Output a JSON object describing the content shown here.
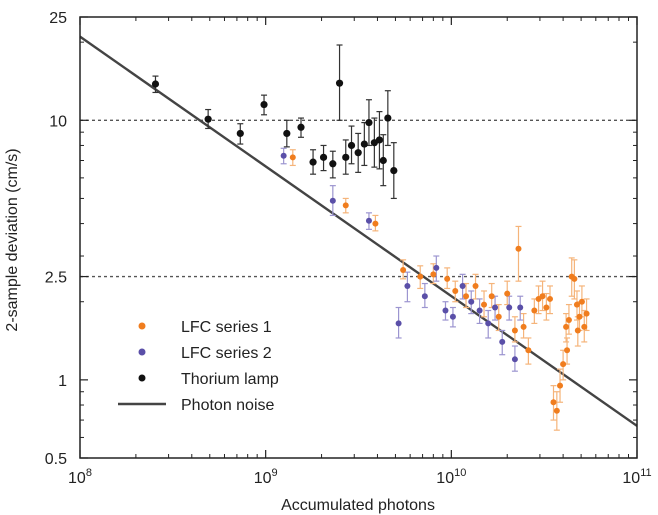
{
  "chart_data": {
    "type": "scatter",
    "xlabel": "Accumulated photons",
    "ylabel": "2-sample deviation (cm/s)",
    "x_scale": "log",
    "y_scale": "log",
    "xlim": [
      100000000.0,
      100000000000.0
    ],
    "ylim": [
      0.5,
      25
    ],
    "x_ticks": [
      {
        "value": 100000000.0,
        "base": "10",
        "exp": "8"
      },
      {
        "value": 1000000000.0,
        "base": "10",
        "exp": "9"
      },
      {
        "value": 10000000000.0,
        "base": "10",
        "exp": "10"
      },
      {
        "value": 100000000000.0,
        "base": "10",
        "exp": "11"
      }
    ],
    "y_ticks": [
      {
        "value": 0.5,
        "label": "0.5"
      },
      {
        "value": 1,
        "label": "1"
      },
      {
        "value": 2.5,
        "label": "2.5"
      },
      {
        "value": 10,
        "label": "10"
      },
      {
        "value": 25,
        "label": "25"
      }
    ],
    "reference_lines": [
      10,
      2.5
    ],
    "colors": {
      "lfc1": "#f07d1e",
      "lfc2": "#5a4fa8",
      "thorium": "#111111",
      "photon_noise": "#444444",
      "reference_line": "#555555"
    },
    "series": [
      {
        "name": "LFC series 1",
        "color_key": "lfc1",
        "points": [
          [
            1400000000.0,
            7.2,
            6.7,
            7.7
          ],
          [
            2700000000.0,
            4.7,
            4.4,
            5.0
          ],
          [
            3900000000.0,
            4.0,
            3.75,
            4.3
          ],
          [
            5500000000.0,
            2.65,
            2.45,
            2.9
          ],
          [
            6800000000.0,
            2.5,
            2.25,
            2.75
          ],
          [
            8000000000.0,
            2.55,
            2.35,
            2.8
          ],
          [
            9500000000.0,
            2.45,
            2.25,
            2.7
          ],
          [
            10500000000.0,
            2.2,
            2.0,
            2.4
          ],
          [
            12000000000.0,
            2.1,
            1.9,
            2.35
          ],
          [
            13500000000.0,
            2.3,
            2.05,
            2.55
          ],
          [
            15000000000.0,
            1.95,
            1.75,
            2.2
          ],
          [
            16500000000.0,
            2.1,
            1.9,
            2.35
          ],
          [
            18000000000.0,
            1.75,
            1.55,
            1.95
          ],
          [
            20000000000.0,
            2.15,
            1.95,
            2.4
          ],
          [
            22000000000.0,
            1.55,
            1.4,
            1.75
          ],
          [
            23000000000.0,
            3.2,
            2.4,
            3.9
          ],
          [
            24500000000.0,
            1.6,
            1.45,
            1.8
          ],
          [
            26000000000.0,
            1.3,
            1.15,
            1.45
          ],
          [
            28000000000.0,
            1.85,
            1.65,
            2.05
          ],
          [
            29500000000.0,
            2.05,
            1.8,
            2.3
          ],
          [
            31000000000.0,
            2.1,
            1.85,
            2.4
          ],
          [
            32500000000.0,
            1.9,
            1.7,
            2.15
          ],
          [
            34000000000.0,
            2.05,
            1.8,
            2.3
          ],
          [
            35500000000.0,
            0.82,
            0.7,
            0.95
          ],
          [
            37000000000.0,
            0.76,
            0.64,
            0.9
          ],
          [
            38500000000.0,
            0.95,
            0.82,
            1.1
          ],
          [
            40000000000.0,
            1.15,
            1.0,
            1.3
          ],
          [
            41500000000.0,
            1.6,
            1.4,
            1.8
          ],
          [
            43000000000.0,
            1.7,
            1.5,
            1.95
          ],
          [
            44500000000.0,
            2.5,
            2.1,
            2.95
          ],
          [
            46000000000.0,
            2.45,
            2.05,
            2.9
          ],
          [
            47500000000.0,
            1.95,
            1.7,
            2.2
          ],
          [
            49000000000.0,
            1.75,
            1.55,
            2.0
          ],
          [
            50500000000.0,
            2.0,
            1.75,
            2.3
          ],
          [
            52000000000.0,
            1.6,
            1.4,
            1.85
          ],
          [
            53500000000.0,
            1.8,
            1.55,
            2.05
          ],
          [
            42000000000.0,
            1.3,
            1.15,
            1.45
          ],
          [
            48000000000.0,
            1.55,
            1.35,
            1.75
          ]
        ]
      },
      {
        "name": "LFC series 2",
        "color_key": "lfc2",
        "points": [
          [
            1250000000.0,
            7.3,
            6.8,
            7.8
          ],
          [
            2300000000.0,
            4.9,
            4.3,
            5.6
          ],
          [
            3600000000.0,
            4.1,
            3.8,
            4.4
          ],
          [
            5200000000.0,
            1.65,
            1.45,
            1.9
          ],
          [
            5800000000.0,
            2.3,
            2.0,
            2.6
          ],
          [
            7200000000.0,
            2.1,
            1.9,
            2.35
          ],
          [
            8300000000.0,
            2.7,
            2.4,
            3.0
          ],
          [
            9300000000.0,
            1.85,
            1.7,
            2.0
          ],
          [
            10200000000.0,
            1.75,
            1.6,
            1.9
          ],
          [
            11500000000.0,
            2.3,
            2.05,
            2.55
          ],
          [
            12800000000.0,
            2.0,
            1.8,
            2.2
          ],
          [
            14200000000.0,
            1.85,
            1.65,
            2.05
          ],
          [
            15800000000.0,
            1.65,
            1.45,
            1.85
          ],
          [
            17200000000.0,
            1.9,
            1.7,
            2.1
          ],
          [
            18800000000.0,
            1.4,
            1.25,
            1.55
          ],
          [
            20500000000.0,
            1.9,
            1.7,
            2.1
          ],
          [
            22000000000.0,
            1.2,
            1.08,
            1.35
          ],
          [
            23500000000.0,
            1.9,
            1.7,
            2.1
          ]
        ]
      },
      {
        "name": "Thorium lamp",
        "color_key": "thorium",
        "points": [
          [
            255000000.0,
            13.8,
            12.8,
            14.8
          ],
          [
            490000000.0,
            10.1,
            9.3,
            11.0
          ],
          [
            730000000.0,
            8.9,
            8.1,
            9.7
          ],
          [
            980000000.0,
            11.5,
            10.5,
            12.5
          ],
          [
            1300000000.0,
            8.9,
            7.9,
            10.0
          ],
          [
            1550000000.0,
            9.4,
            8.6,
            10.2
          ],
          [
            1800000000.0,
            6.9,
            6.2,
            7.7
          ],
          [
            2050000000.0,
            7.2,
            6.4,
            8.0
          ],
          [
            2300000000.0,
            6.8,
            6.0,
            7.6
          ],
          [
            2500000000.0,
            13.9,
            10.0,
            19.5
          ],
          [
            2700000000.0,
            7.2,
            6.2,
            8.4
          ],
          [
            2900000000.0,
            8.0,
            6.8,
            9.5
          ],
          [
            3150000000.0,
            7.5,
            6.3,
            8.9
          ],
          [
            3400000000.0,
            8.1,
            6.7,
            9.8
          ],
          [
            3600000000.0,
            9.8,
            8.0,
            12.0
          ],
          [
            3850000000.0,
            8.2,
            6.6,
            10.2
          ],
          [
            4100000000.0,
            8.4,
            6.5,
            10.8
          ],
          [
            4300000000.0,
            7.0,
            5.6,
            8.8
          ],
          [
            4550000000.0,
            10.2,
            8.0,
            13.0
          ],
          [
            4900000000.0,
            6.4,
            5.0,
            8.2
          ]
        ]
      }
    ],
    "photon_noise": {
      "name": "Photon noise",
      "points": [
        [
          100000000.0,
          21.0
        ],
        [
          100000000000.0,
          0.665
        ]
      ]
    },
    "legend": {
      "position": "bottom-left",
      "items": [
        {
          "label": "LFC series 1",
          "marker": "dot",
          "color_key": "lfc1"
        },
        {
          "label": "LFC series 2",
          "marker": "dot",
          "color_key": "lfc2"
        },
        {
          "label": "Thorium lamp",
          "marker": "dot",
          "color_key": "thorium"
        },
        {
          "label": "Photon noise",
          "marker": "line",
          "color_key": "photon_noise"
        }
      ]
    }
  }
}
